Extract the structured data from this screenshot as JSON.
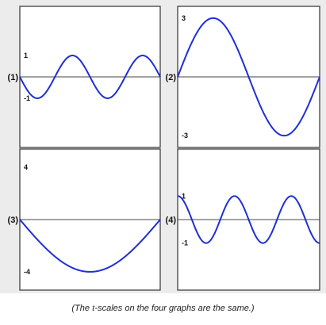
{
  "colors": {
    "curve": "#1f2fd6",
    "axis": "#444444",
    "frame": "#333333",
    "panel": "#ececec",
    "plot": "#ffffff"
  },
  "chart_data": [
    {
      "type": "line",
      "label": "(1)",
      "y_ticks": [
        {
          "value": 1,
          "label": "1"
        },
        {
          "value": -1,
          "label": "-1"
        }
      ],
      "ylim": [
        -3.3,
        3.3
      ],
      "t_range": [
        0,
        1
      ],
      "series": [
        {
          "amplitude": -1,
          "cycles": 2,
          "phase": 0
        }
      ]
    },
    {
      "type": "line",
      "label": "(2)",
      "y_ticks": [
        {
          "value": 3,
          "label": "3"
        },
        {
          "value": -3,
          "label": "-3"
        }
      ],
      "ylim": [
        -3.6,
        3.6
      ],
      "t_range": [
        0,
        1
      ],
      "series": [
        {
          "amplitude": 3,
          "cycles": 1,
          "phase": 0
        }
      ]
    },
    {
      "type": "line",
      "label": "(3)",
      "y_ticks": [
        {
          "value": 4,
          "label": "4"
        },
        {
          "value": -4,
          "label": "-4"
        }
      ],
      "ylim": [
        -5.4,
        5.4
      ],
      "t_range": [
        0,
        1
      ],
      "series": [
        {
          "amplitude": -4,
          "cycles": 0.5,
          "phase": 0
        }
      ]
    },
    {
      "type": "line",
      "label": "(4)",
      "y_ticks": [
        {
          "value": 1,
          "label": "1"
        },
        {
          "value": -1,
          "label": "-1"
        }
      ],
      "ylim": [
        -3,
        3
      ],
      "t_range": [
        0,
        1
      ],
      "series": [
        {
          "amplitude": 1,
          "cycles": 2.5,
          "phase": 0.25
        }
      ]
    }
  ],
  "caption": {
    "before": "(The ",
    "variable": "t",
    "after": "-scales on the four graphs are the same.)"
  }
}
